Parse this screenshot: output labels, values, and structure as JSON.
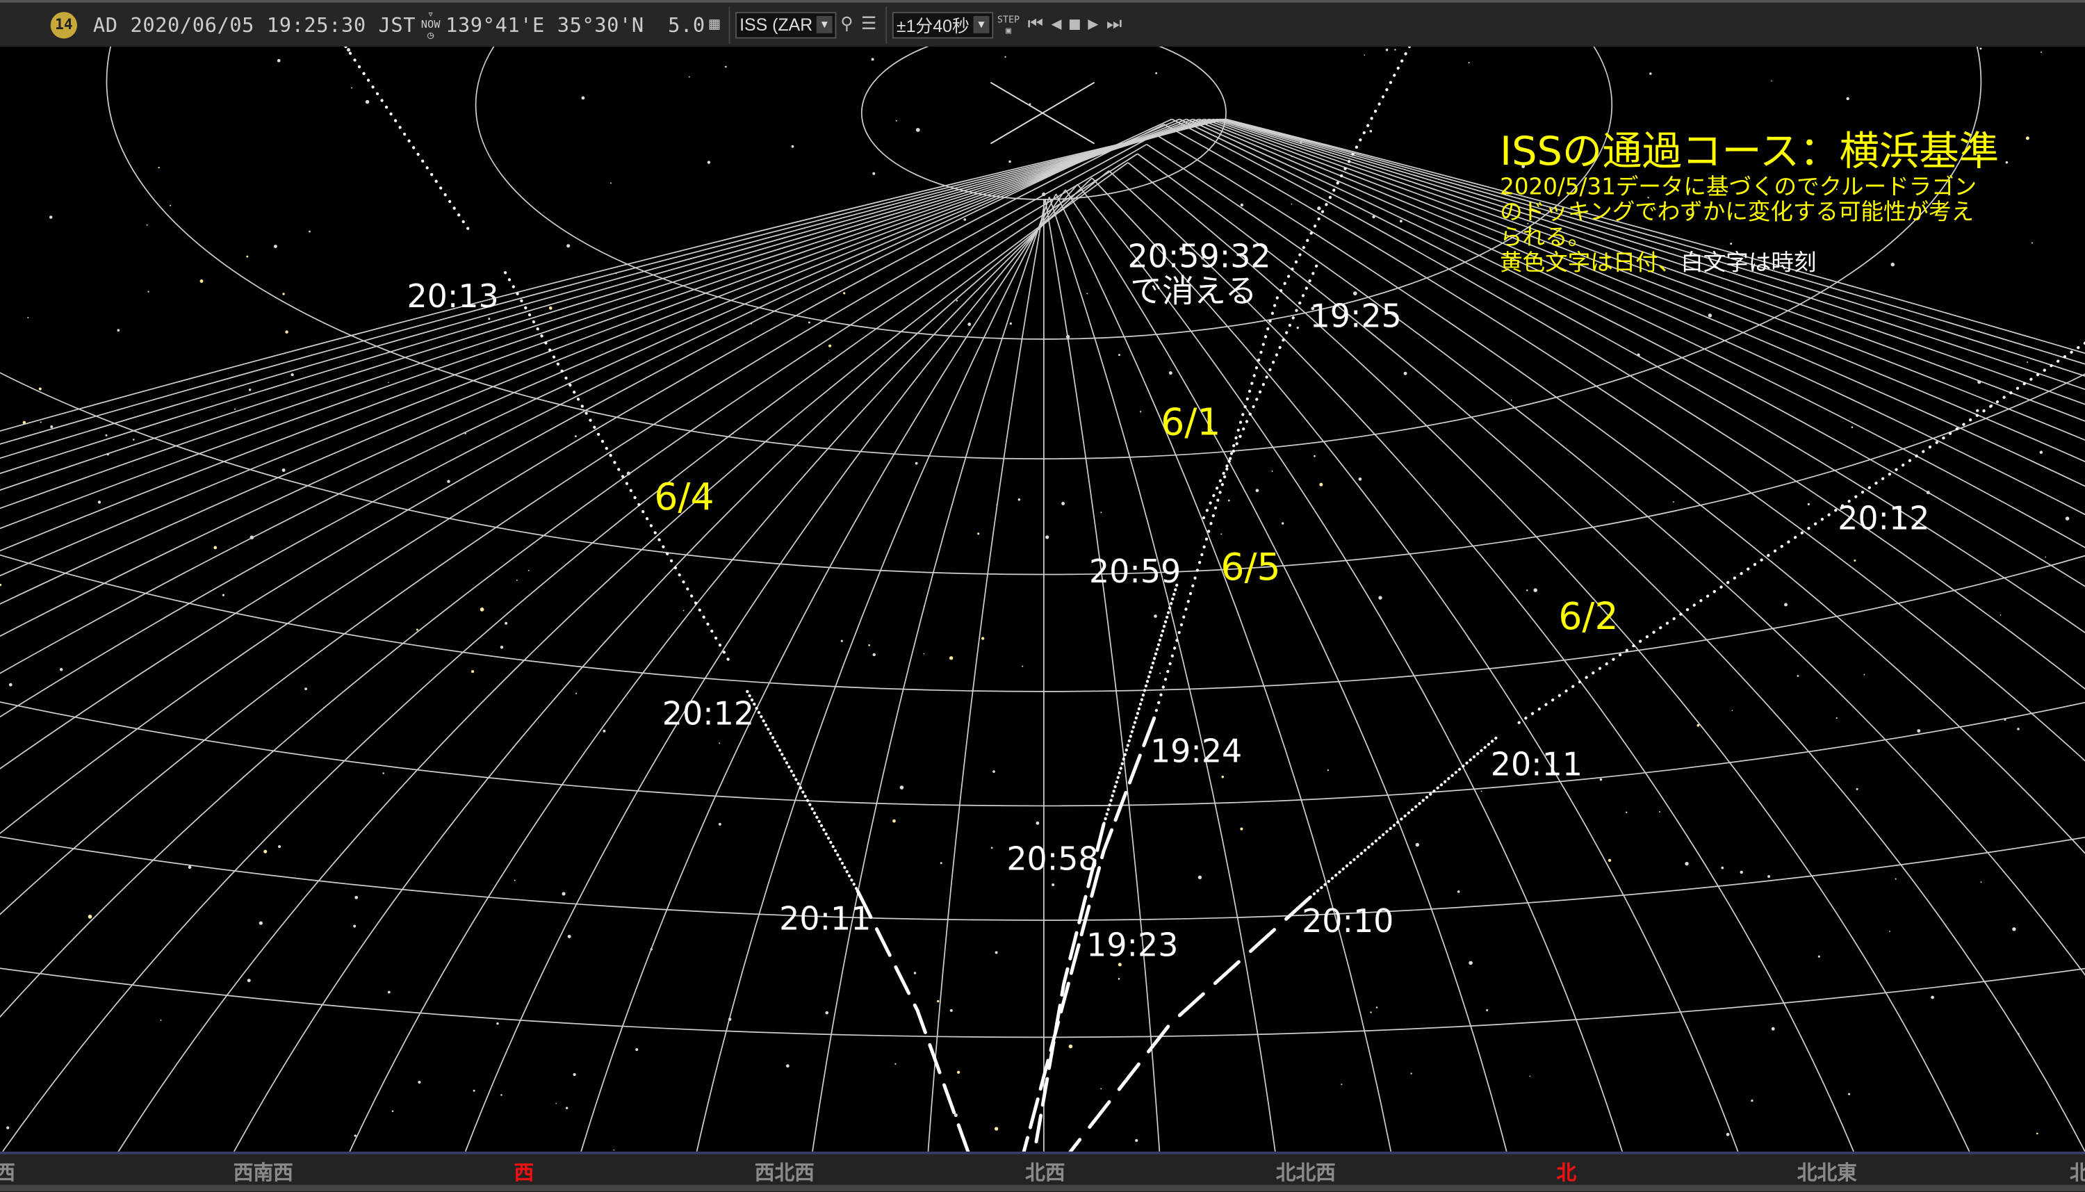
{
  "toolbar": {
    "badge": "14",
    "datetime": "AD 2020/06/05 19:25:30 JST",
    "now_label": "NOW",
    "location": "139°41'E 35°30'N",
    "magnitude": "5.0",
    "object_select": "ISS (ZAR",
    "step_select": "±1分40秒",
    "step_label": "STEP",
    "icons": [
      "calendar-icon",
      "search-icon",
      "list-icon",
      "first-icon",
      "prev-icon",
      "stop-icon",
      "play-icon",
      "last-icon"
    ]
  },
  "annotation": {
    "title": "ISSの通過コース：横浜基準",
    "line1": "2020/5/31データに基づくのでクルードラゴン",
    "line2": "のドッキングでわずかに変化する可能性が考え",
    "line3": "られる。",
    "legend_yellow": "黄色文字は日付、",
    "legend_white": "白文字は時刻",
    "yellow": "#ffff00",
    "white": "#ffffff"
  },
  "dates": [
    {
      "id": "6-4",
      "text": "6/4"
    },
    {
      "id": "6-1",
      "text": "6/1"
    },
    {
      "id": "6-5",
      "text": "6/5"
    },
    {
      "id": "6-2",
      "text": "6/2"
    }
  ],
  "times": [
    {
      "text": "20:13"
    },
    {
      "text": "20:12"
    },
    {
      "text": "20:11"
    },
    {
      "text": "20:59:32"
    },
    {
      "text": "で消える"
    },
    {
      "text": "19:25"
    },
    {
      "text": "20:59"
    },
    {
      "text": "19:24"
    },
    {
      "text": "20:58"
    },
    {
      "text": "19:23"
    },
    {
      "text": "20:10"
    },
    {
      "text": "20:11"
    },
    {
      "text": "20:12"
    }
  ],
  "directions": [
    {
      "text": "西",
      "red": false
    },
    {
      "text": "西南西",
      "red": false
    },
    {
      "text": "西",
      "red": true
    },
    {
      "text": "西北西",
      "red": false
    },
    {
      "text": "北西",
      "red": false
    },
    {
      "text": "北北西",
      "red": false
    },
    {
      "text": "北",
      "red": true
    },
    {
      "text": "北北東",
      "red": false
    },
    {
      "text": "北",
      "red": false
    }
  ]
}
